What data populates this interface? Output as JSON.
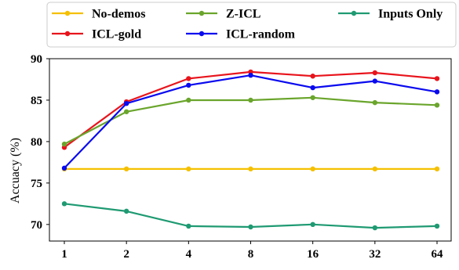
{
  "chart_data": {
    "type": "line",
    "title": "",
    "xlabel": "",
    "ylabel": "Accuacy (%)",
    "categories": [
      "1",
      "2",
      "4",
      "8",
      "16",
      "32",
      "64"
    ],
    "ylim": [
      68,
      90
    ],
    "yticks": [
      70,
      75,
      80,
      85,
      90
    ],
    "grid": false,
    "legend_position": "top",
    "series": [
      {
        "name": "No-demos",
        "color": "#f5c000",
        "values": [
          76.7,
          76.7,
          76.7,
          76.7,
          76.7,
          76.7,
          76.7
        ]
      },
      {
        "name": "ICL-gold",
        "color": "#e8141c",
        "values": [
          79.3,
          84.8,
          87.6,
          88.4,
          87.9,
          88.3,
          87.6
        ]
      },
      {
        "name": "Z-ICL",
        "color": "#6aa52c",
        "values": [
          79.7,
          83.6,
          85.0,
          85.0,
          85.3,
          84.7,
          84.4
        ]
      },
      {
        "name": "ICL-random",
        "color": "#0a0aef",
        "values": [
          76.8,
          84.6,
          86.8,
          88.0,
          86.5,
          87.3,
          86.0
        ]
      },
      {
        "name": "Inputs Only",
        "color": "#1f9a72",
        "values": [
          72.5,
          71.6,
          69.8,
          69.7,
          70.0,
          69.6,
          69.8
        ]
      }
    ]
  }
}
